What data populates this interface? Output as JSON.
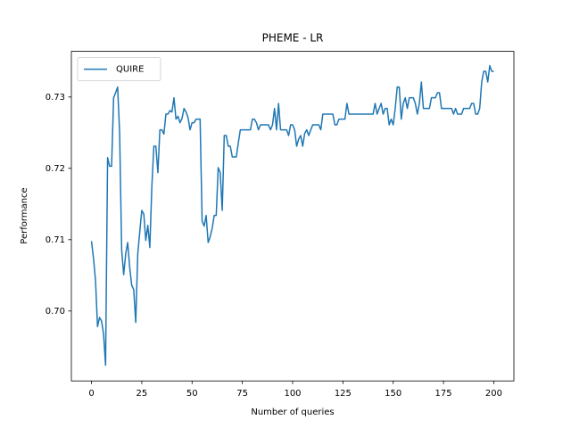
{
  "chart_data": {
    "type": "line",
    "title": "PHEME - LR",
    "xlabel": "Number of queries",
    "ylabel": "Performance",
    "legend": "upper left",
    "x": [
      0,
      1,
      2,
      3,
      4,
      5,
      6,
      7,
      8,
      9,
      10,
      11,
      12,
      13,
      14,
      15,
      16,
      17,
      18,
      19,
      20,
      21,
      22,
      23,
      24,
      25,
      26,
      27,
      28,
      29,
      30,
      31,
      32,
      33,
      34,
      35,
      36,
      37,
      38,
      39,
      40,
      41,
      42,
      43,
      44,
      45,
      46,
      47,
      48,
      49,
      50,
      51,
      52,
      53,
      54,
      55,
      56,
      57,
      58,
      59,
      60,
      61,
      62,
      63,
      64,
      65,
      66,
      67,
      68,
      69,
      70,
      71,
      72,
      73,
      74,
      75,
      76,
      77,
      78,
      79,
      80,
      81,
      82,
      83,
      84,
      85,
      86,
      87,
      88,
      89,
      90,
      91,
      92,
      93,
      94,
      95,
      96,
      97,
      98,
      99,
      100,
      101,
      102,
      103,
      104,
      105,
      106,
      107,
      108,
      109,
      110,
      111,
      112,
      113,
      114,
      115,
      116,
      117,
      118,
      119,
      120,
      121,
      122,
      123,
      124,
      125,
      126,
      127,
      128,
      129,
      130,
      131,
      132,
      133,
      134,
      135,
      136,
      137,
      138,
      139,
      140,
      141,
      142,
      143,
      144,
      145,
      146,
      147,
      148,
      149,
      150,
      151,
      152,
      153,
      154,
      155,
      156,
      157,
      158,
      159,
      160,
      161,
      162,
      163,
      164,
      165,
      166,
      167,
      168,
      169,
      170,
      171,
      172,
      173,
      174,
      175,
      176,
      177,
      178,
      179,
      180,
      181,
      182,
      183,
      184,
      185,
      186,
      187,
      188,
      189,
      190,
      191,
      192,
      193,
      194,
      195,
      196,
      197,
      198,
      199,
      200
    ],
    "series": [
      {
        "name": "QUIRE",
        "color": "#1f77b4",
        "values": [
          0.7098,
          0.7074,
          0.7043,
          0.6978,
          0.6991,
          0.6986,
          0.6968,
          0.6924,
          0.7215,
          0.7203,
          0.7203,
          0.7299,
          0.7306,
          0.7314,
          0.7249,
          0.7086,
          0.7051,
          0.708,
          0.7096,
          0.7061,
          0.7036,
          0.703,
          0.6984,
          0.708,
          0.7111,
          0.7141,
          0.7136,
          0.7099,
          0.712,
          0.7089,
          0.7174,
          0.7231,
          0.7231,
          0.7194,
          0.7254,
          0.7254,
          0.7248,
          0.7276,
          0.7276,
          0.7281,
          0.7279,
          0.7299,
          0.7269,
          0.7273,
          0.7264,
          0.727,
          0.7284,
          0.7279,
          0.7271,
          0.7254,
          0.7264,
          0.7264,
          0.7269,
          0.7269,
          0.7269,
          0.7126,
          0.7119,
          0.7134,
          0.7096,
          0.7104,
          0.7116,
          0.7134,
          0.7134,
          0.7201,
          0.7194,
          0.7141,
          0.7246,
          0.7246,
          0.7231,
          0.7231,
          0.7216,
          0.7216,
          0.7216,
          0.7236,
          0.7254,
          0.7254,
          0.7254,
          0.7254,
          0.7254,
          0.7254,
          0.7269,
          0.7269,
          0.7264,
          0.7254,
          0.7261,
          0.7261,
          0.7261,
          0.7261,
          0.7261,
          0.7254,
          0.7261,
          0.7284,
          0.7254,
          0.7291,
          0.7254,
          0.7254,
          0.7254,
          0.7254,
          0.7246,
          0.7261,
          0.7261,
          0.7254,
          0.7231,
          0.7241,
          0.7246,
          0.7231,
          0.7249,
          0.7254,
          0.7246,
          0.7254,
          0.7261,
          0.7261,
          0.7261,
          0.7261,
          0.7254,
          0.7276,
          0.7276,
          0.7276,
          0.7276,
          0.7276,
          0.7276,
          0.7261,
          0.7261,
          0.7269,
          0.7269,
          0.7269,
          0.7269,
          0.7291,
          0.7276,
          0.7276,
          0.7276,
          0.7276,
          0.7276,
          0.7276,
          0.7276,
          0.7276,
          0.7276,
          0.7276,
          0.7276,
          0.7276,
          0.7276,
          0.7291,
          0.7276,
          0.7284,
          0.7291,
          0.7276,
          0.7284,
          0.7284,
          0.7261,
          0.7269,
          0.7261,
          0.7284,
          0.7314,
          0.7314,
          0.7269,
          0.7291,
          0.7299,
          0.7284,
          0.7299,
          0.7299,
          0.7299,
          0.7291,
          0.7276,
          0.7291,
          0.7321,
          0.7284,
          0.7284,
          0.7284,
          0.7284,
          0.7299,
          0.7299,
          0.7299,
          0.7306,
          0.7306,
          0.7284,
          0.7284,
          0.7284,
          0.7284,
          0.7284,
          0.7284,
          0.7276,
          0.7284,
          0.7276,
          0.7276,
          0.7276,
          0.7284,
          0.7284,
          0.7284,
          0.7284,
          0.7291,
          0.7291,
          0.7276,
          0.7276,
          0.7284,
          0.7321,
          0.7336,
          0.7336,
          0.7321,
          0.7344,
          0.7336,
          0.7336
        ]
      }
    ],
    "xlim": [
      -10,
      210
    ],
    "xticks": [
      0,
      25,
      50,
      75,
      100,
      125,
      150,
      175,
      200
    ],
    "ylim": [
      0.6902,
      0.7364
    ],
    "yticks": [
      {
        "value": 0.7,
        "label": "0.70"
      },
      0.71,
      0.72,
      0.73
    ]
  }
}
